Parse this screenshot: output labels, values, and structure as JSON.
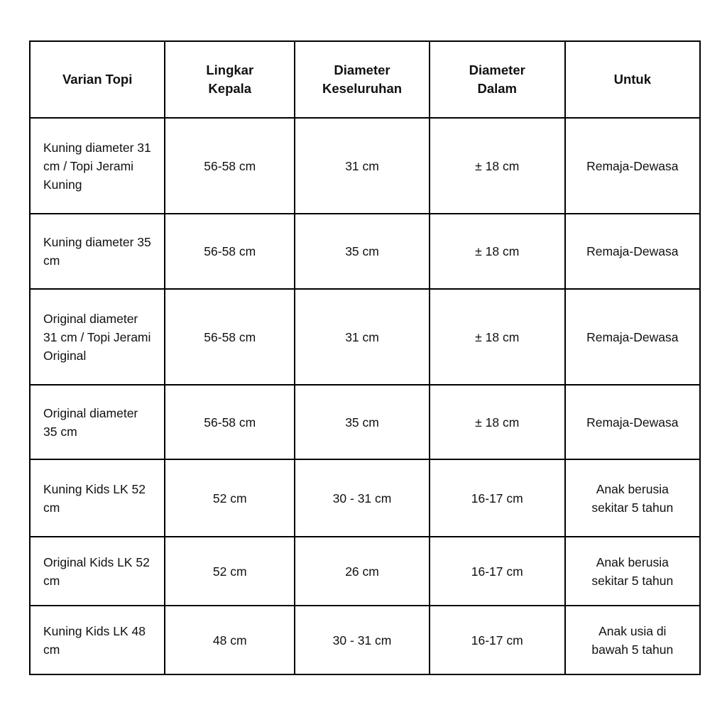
{
  "table": {
    "headers": [
      "Varian Topi",
      "Lingkar Kepala",
      "Diameter Keseluruhan",
      "Diameter Dalam",
      "Untuk"
    ],
    "rows": [
      [
        "Kuning diameter 31 cm / Topi Jerami Kuning",
        "56-58 cm",
        "31 cm",
        "± 18 cm",
        "Remaja-Dewasa"
      ],
      [
        "Kuning diameter 35 cm",
        "56-58 cm",
        "35 cm",
        "± 18 cm",
        "Remaja-Dewasa"
      ],
      [
        "Original diameter 31 cm / Topi Jerami Original",
        "56-58 cm",
        "31 cm",
        "± 18 cm",
        "Remaja-Dewasa"
      ],
      [
        "Original diameter 35 cm",
        "56-58 cm",
        "35 cm",
        "± 18 cm",
        "Remaja-Dewasa"
      ],
      [
        "Kuning Kids LK 52 cm",
        "52 cm",
        "30 - 31 cm",
        "16-17 cm",
        "Anak berusia sekitar 5 tahun"
      ],
      [
        "Original Kids LK 52 cm",
        "52 cm",
        "26 cm",
        "16-17 cm",
        "Anak berusia sekitar 5 tahun"
      ],
      [
        "Kuning Kids LK 48 cm",
        "48 cm",
        "30 - 31 cm",
        "16-17 cm",
        "Anak usia di bawah 5 tahun"
      ]
    ]
  }
}
